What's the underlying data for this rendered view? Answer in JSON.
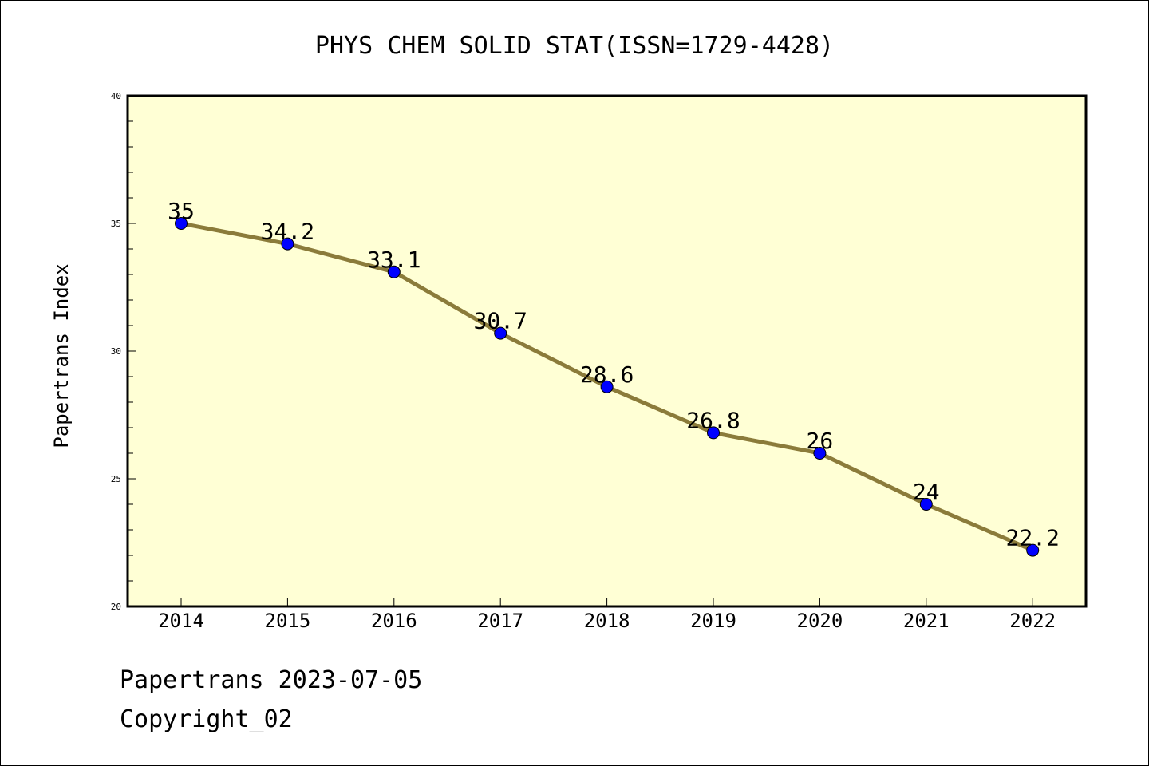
{
  "chart_data": {
    "type": "line",
    "title": "PHYS CHEM SOLID STAT(ISSN=1729-4428)",
    "ylabel": "Papertrans Index",
    "xlabel": "",
    "categories": [
      "2014",
      "2015",
      "2016",
      "2017",
      "2018",
      "2019",
      "2020",
      "2021",
      "2022"
    ],
    "series": [
      {
        "values": [
          35,
          34.2,
          33.1,
          30.7,
          28.6,
          26.8,
          26,
          24,
          22.2
        ]
      }
    ],
    "data_labels": [
      "35",
      "34.2",
      "33.1",
      "30.7",
      "28.6",
      "26.8",
      "26",
      "24",
      "22.2"
    ],
    "ylim": [
      20,
      40
    ],
    "yticks": [
      "20",
      "25",
      "30",
      "35",
      "40"
    ],
    "grid": false,
    "colors": {
      "plot_background": "#ffffd5",
      "line": "#8b7b3a",
      "marker": "#0000ff"
    }
  },
  "footer": {
    "date_line": "Papertrans 2023-07-05",
    "copyright": "Copyright_02"
  }
}
